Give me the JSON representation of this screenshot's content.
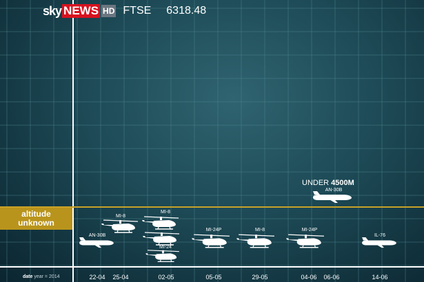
{
  "header": {
    "logo_sky": "sky",
    "logo_news": "NEWS",
    "logo_hd": "HD",
    "ticker_name": "FTSE",
    "ticker_value": "6318.48"
  },
  "altitude_label_line1": "altitude",
  "altitude_label_line2": "unknown",
  "under_prefix": "UNDER ",
  "under_value": "4500M",
  "under_aircraft": "AN-30B",
  "axis_caption_bold": "date",
  "axis_caption_rest": " year = 2014",
  "dates": [
    "22-04",
    "25-04",
    "02-05",
    "05-05",
    "29-05",
    "04-06",
    "06-06",
    "14-06"
  ],
  "aircraft_labels": {
    "an30b_low": "AN-30B",
    "mi8_a": "MI-8",
    "mi8_b": "MI-8",
    "mi24_stack": "MI-24",
    "mi24p_a": "MI-24P",
    "mi8_c": "MI-8",
    "mi24p_b": "MI-24P",
    "il76": "IL-76"
  },
  "colors": {
    "accent_gold": "#b9941c",
    "brand_red": "#d8121f",
    "grid_line": "#4f8791"
  }
}
